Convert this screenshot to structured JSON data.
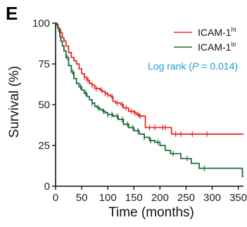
{
  "panel_label": "E",
  "colors": {
    "hi": "#e32b2b",
    "lo": "#1e6b3a",
    "stat": "#1a9ad6",
    "axis": "#111111"
  },
  "chart_data": {
    "type": "line",
    "xlabel": "Time (months)",
    "ylabel": "Survival (%)",
    "xlim": [
      0,
      360
    ],
    "ylim": [
      0,
      100
    ],
    "xticks": [
      "0",
      "50",
      "100",
      "150",
      "200",
      "250",
      "300",
      "350"
    ],
    "yticks": [
      "0",
      "25",
      "50",
      "75",
      "100"
    ],
    "legend_position": "top-right",
    "annotation": {
      "prefix": "Log rank (",
      "p_symbol": "P",
      "value": " = 0.014)"
    },
    "series": [
      {
        "name": "ICAM-1",
        "sup": "hi",
        "color_key": "hi",
        "points": [
          [
            0,
            100
          ],
          [
            3,
            99
          ],
          [
            5,
            97
          ],
          [
            8,
            96
          ],
          [
            10,
            94
          ],
          [
            13,
            91
          ],
          [
            16,
            89
          ],
          [
            20,
            86
          ],
          [
            25,
            82
          ],
          [
            30,
            79
          ],
          [
            35,
            77
          ],
          [
            40,
            75
          ],
          [
            45,
            72
          ],
          [
            50,
            69
          ],
          [
            55,
            67
          ],
          [
            60,
            65
          ],
          [
            65,
            63
          ],
          [
            70,
            62
          ],
          [
            75,
            60
          ],
          [
            80,
            60
          ],
          [
            85,
            59
          ],
          [
            90,
            58
          ],
          [
            95,
            57
          ],
          [
            100,
            56
          ],
          [
            105,
            55
          ],
          [
            110,
            52
          ],
          [
            115,
            51
          ],
          [
            125,
            50
          ],
          [
            130,
            48
          ],
          [
            140,
            46
          ],
          [
            150,
            45
          ],
          [
            155,
            44
          ],
          [
            160,
            43
          ],
          [
            170,
            43
          ],
          [
            172,
            36
          ],
          [
            200,
            36
          ],
          [
            215,
            36
          ],
          [
            222,
            32
          ],
          [
            245,
            32
          ],
          [
            270,
            32
          ],
          [
            300,
            32
          ],
          [
            360,
            32
          ]
        ],
        "censor": [
          55,
          62,
          70,
          78,
          88,
          95,
          100,
          108,
          118,
          128,
          135,
          145,
          152,
          158,
          162,
          180,
          190,
          205,
          210,
          230,
          240,
          262,
          290
        ]
      },
      {
        "name": "ICAM-1",
        "sup": "lo",
        "color_key": "lo",
        "points": [
          [
            0,
            100
          ],
          [
            2,
            99
          ],
          [
            4,
            97
          ],
          [
            6,
            95
          ],
          [
            8,
            92
          ],
          [
            10,
            89
          ],
          [
            13,
            86
          ],
          [
            16,
            83
          ],
          [
            20,
            79
          ],
          [
            25,
            74
          ],
          [
            30,
            70
          ],
          [
            35,
            66
          ],
          [
            40,
            63
          ],
          [
            45,
            61
          ],
          [
            50,
            59
          ],
          [
            55,
            57
          ],
          [
            60,
            55
          ],
          [
            65,
            53
          ],
          [
            70,
            51
          ],
          [
            75,
            49
          ],
          [
            80,
            48
          ],
          [
            85,
            47
          ],
          [
            90,
            46
          ],
          [
            95,
            45
          ],
          [
            100,
            44
          ],
          [
            110,
            43
          ],
          [
            120,
            41
          ],
          [
            130,
            38
          ],
          [
            140,
            36
          ],
          [
            150,
            34
          ],
          [
            160,
            32
          ],
          [
            170,
            30
          ],
          [
            180,
            28
          ],
          [
            190,
            27
          ],
          [
            200,
            25
          ],
          [
            210,
            22
          ],
          [
            220,
            20
          ],
          [
            240,
            17
          ],
          [
            260,
            14
          ],
          [
            275,
            11
          ],
          [
            300,
            11
          ],
          [
            330,
            11
          ],
          [
            358,
            11
          ],
          [
            358,
            6
          ],
          [
            360,
            6
          ]
        ],
        "censor": [
          22,
          33,
          48,
          58,
          70,
          82,
          92,
          100,
          108,
          118,
          128,
          138,
          148,
          158,
          170,
          182,
          196,
          225,
          252,
          285
        ]
      }
    ]
  }
}
